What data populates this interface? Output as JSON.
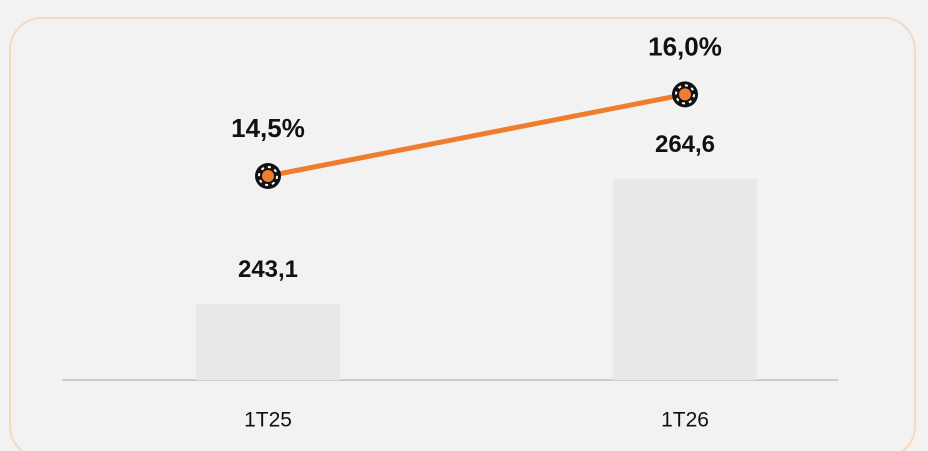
{
  "chart_data": {
    "type": "bar-line",
    "categories": [
      "1T25",
      "1T26"
    ],
    "series": [
      {
        "type": "bar",
        "axis": "y",
        "color": "#e8e8e8",
        "values": [
          243.1,
          264.6
        ],
        "value_labels": [
          "243,1",
          "264,6"
        ]
      },
      {
        "type": "line",
        "axis": "y2",
        "color": "#ef7d2d",
        "values": [
          14.5,
          16.0
        ],
        "value_labels": [
          "14,5%",
          "16,0%"
        ]
      }
    ],
    "ylim": [
      230,
      288.5
    ],
    "y2lim": [
      10.75,
      17
    ]
  }
}
